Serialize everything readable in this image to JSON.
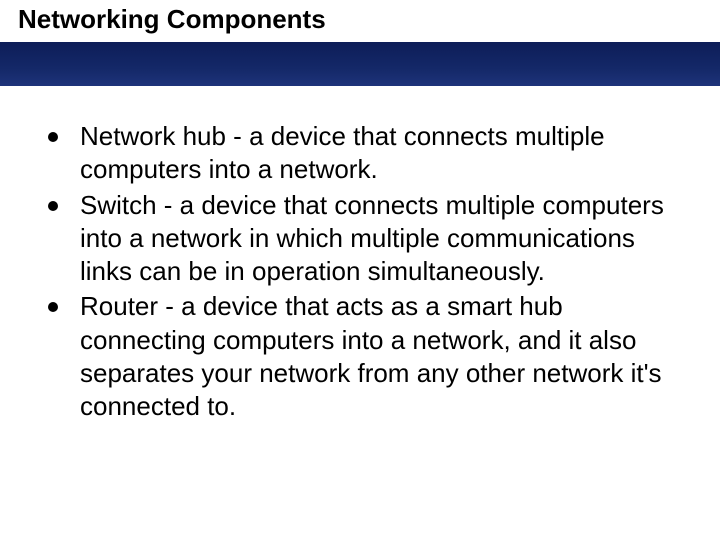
{
  "slide": {
    "title": "Networking Components",
    "bullets": [
      "Network hub - a device that connects multiple computers into a network.",
      "Switch - a device that connects multiple computers into a network in which multiple communications links can be in operation simultaneously.",
      "Router - a device that acts as a smart hub connecting computers into a network, and it also separates your network from any other network it's connected to."
    ],
    "colors": {
      "header_band": "#142868",
      "background": "#ffffff",
      "text": "#000000",
      "bullet": "#000000"
    },
    "typography": {
      "title_fontsize": 26,
      "title_weight": "bold",
      "body_fontsize": 26,
      "font_family": "Arial"
    }
  }
}
